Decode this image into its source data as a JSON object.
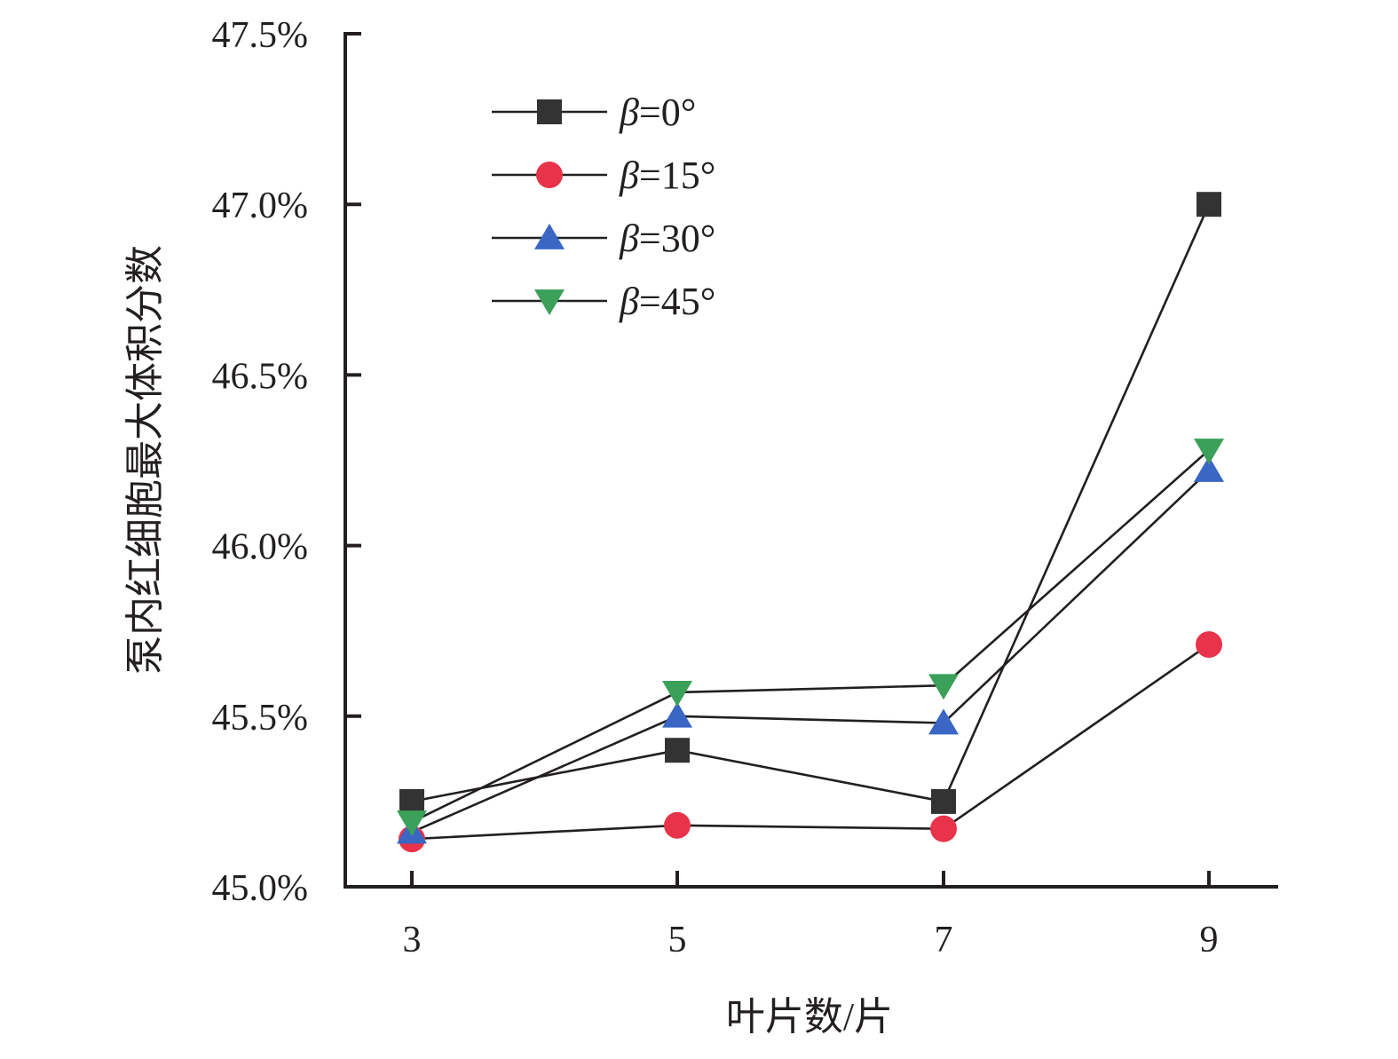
{
  "chart_data": {
    "type": "line",
    "xlabel": "叶片数/片",
    "ylabel": "泵内红细胞最大体积分数",
    "x": [
      3,
      5,
      7,
      9
    ],
    "x_tick_labels": [
      "3",
      "5",
      "7",
      "9"
    ],
    "ylim": [
      0.45,
      0.475
    ],
    "y_ticks": [
      0.45,
      0.455,
      0.46,
      0.465,
      0.47,
      0.475
    ],
    "y_tick_labels": [
      "45.0%",
      "45.5%",
      "46.0%",
      "46.5%",
      "47.0%",
      "47.5%"
    ],
    "legend_position": "top-left",
    "grid": false,
    "series": [
      {
        "name": "β=0°",
        "legend_symbol": "β",
        "legend_value": "=0°",
        "marker": "square",
        "color": "#333333",
        "values": [
          0.4525,
          0.454,
          0.4525,
          0.47
        ]
      },
      {
        "name": "β=15°",
        "legend_symbol": "β",
        "legend_value": "=15°",
        "marker": "circle",
        "color": "#e8334a",
        "values": [
          0.4514,
          0.4518,
          0.4517,
          0.4571
        ]
      },
      {
        "name": "β=30°",
        "legend_symbol": "β",
        "legend_value": "=30°",
        "marker": "triangle-up",
        "color": "#3a66c4",
        "values": [
          0.4516,
          0.455,
          0.4548,
          0.4622
        ]
      },
      {
        "name": "β=45°",
        "legend_symbol": "β",
        "legend_value": "=45°",
        "marker": "triangle-down",
        "color": "#3aa05a",
        "values": [
          0.4519,
          0.4557,
          0.4559,
          0.4628
        ]
      }
    ]
  }
}
